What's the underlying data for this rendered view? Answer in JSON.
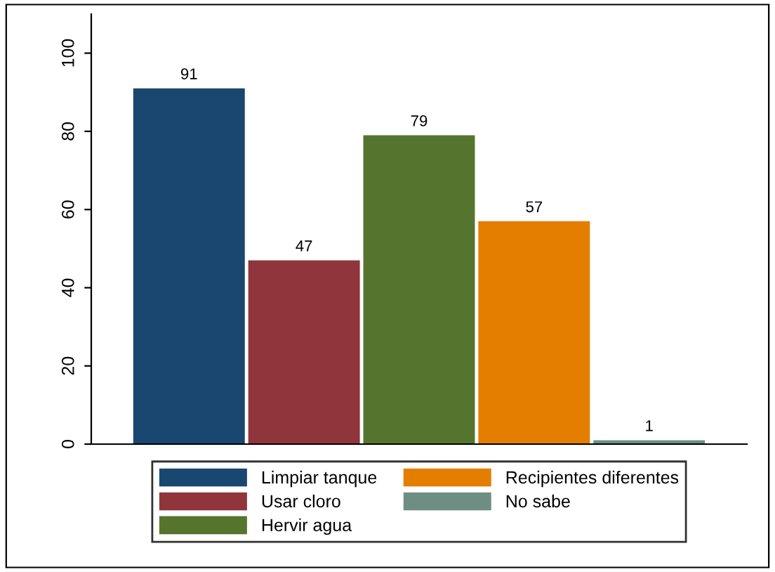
{
  "chart_data": {
    "type": "bar",
    "categories": [
      null
    ],
    "series": [
      {
        "name": "Limpiar tanque",
        "color": "#1a476f",
        "values": [
          91
        ]
      },
      {
        "name": "Usar cloro",
        "color": "#90353b",
        "values": [
          47
        ]
      },
      {
        "name": "Hervir agua",
        "color": "#55752f",
        "values": [
          79
        ]
      },
      {
        "name": "Recipientes diferentes",
        "color": "#e37e00",
        "values": [
          57
        ]
      },
      {
        "name": "No sabe",
        "color": "#6e8e84",
        "values": [
          1
        ]
      }
    ],
    "ylim": [
      0,
      110
    ],
    "yticks": [
      0,
      20,
      40,
      60,
      80,
      100
    ],
    "data_labels": true,
    "legend": "bottom",
    "grid": false,
    "tick_labels": "y"
  }
}
